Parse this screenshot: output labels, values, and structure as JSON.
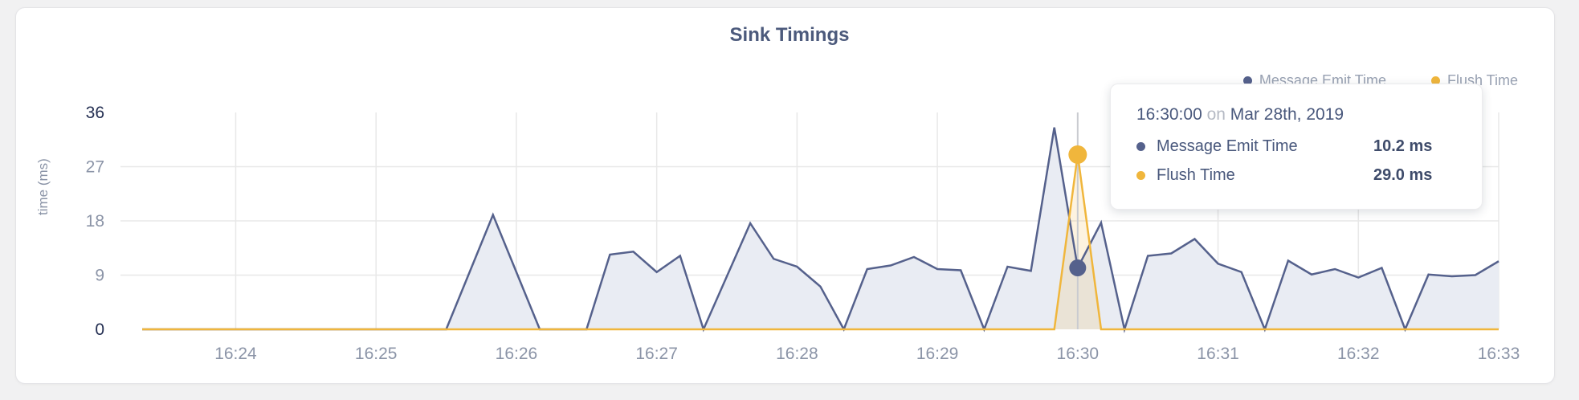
{
  "page": {
    "title": "Sink Timings"
  },
  "legend": {
    "items": [
      {
        "label": "Message Emit Time",
        "color": "#55618c"
      },
      {
        "label": "Flush Time",
        "color": "#f0b63c"
      }
    ]
  },
  "tooltip": {
    "time": "16:30:00",
    "connector": "on",
    "date": "Mar 28th, 2019",
    "rows": [
      {
        "label": "Message Emit Time",
        "value": "10.2 ms",
        "color": "#55618c"
      },
      {
        "label": "Flush Time",
        "value": "29.0 ms",
        "color": "#f0b63c"
      }
    ]
  },
  "chart_data": {
    "type": "area",
    "title": "Sink Timings",
    "xlabel": "",
    "ylabel": "time (ms)",
    "ylim": [
      0,
      36
    ],
    "yticks": [
      0,
      9,
      18,
      27,
      36
    ],
    "xtick_labels": [
      "16:24",
      "16:25",
      "16:26",
      "16:27",
      "16:28",
      "16:29",
      "16:30",
      "16:31",
      "16:32",
      "16:33"
    ],
    "grid": true,
    "legend_position": "top-right",
    "grid_color": "#e8e8e8",
    "crosshair_color": "#c9cbd0",
    "x": [
      "16:23:20",
      "16:23:30",
      "16:23:40",
      "16:23:50",
      "16:24:00",
      "16:24:10",
      "16:24:20",
      "16:24:30",
      "16:24:40",
      "16:24:50",
      "16:25:00",
      "16:25:10",
      "16:25:20",
      "16:25:30",
      "16:25:40",
      "16:25:50",
      "16:26:00",
      "16:26:10",
      "16:26:20",
      "16:26:30",
      "16:26:40",
      "16:26:50",
      "16:27:00",
      "16:27:10",
      "16:27:20",
      "16:27:30",
      "16:27:40",
      "16:27:50",
      "16:28:00",
      "16:28:10",
      "16:28:20",
      "16:28:30",
      "16:28:40",
      "16:28:50",
      "16:29:00",
      "16:29:10",
      "16:29:20",
      "16:29:30",
      "16:29:40",
      "16:29:50",
      "16:30:00",
      "16:30:10",
      "16:30:20",
      "16:30:30",
      "16:30:40",
      "16:30:50",
      "16:31:00",
      "16:31:10",
      "16:31:20",
      "16:31:30",
      "16:31:40",
      "16:31:50",
      "16:32:00",
      "16:32:10",
      "16:32:20",
      "16:32:30",
      "16:32:40",
      "16:32:50",
      "16:33:00"
    ],
    "series": [
      {
        "name": "Message Emit Time",
        "color": "#55618c",
        "fill": "#e9ecf3",
        "values": [
          0,
          0,
          0,
          0,
          0,
          0,
          0,
          0,
          0,
          0,
          0,
          0,
          0,
          0,
          9.5,
          19,
          9.5,
          0,
          0,
          0,
          12.4,
          12.9,
          9.5,
          12.2,
          0,
          8.8,
          17.6,
          11.7,
          10.4,
          7.1,
          0,
          10,
          10.6,
          12,
          10,
          9.8,
          0,
          10.4,
          9.7,
          33.5,
          10.2,
          17.7,
          0,
          12.2,
          12.6,
          15,
          10.9,
          9.5,
          0,
          11.4,
          9.1,
          10,
          8.6,
          10.2,
          0,
          9.1,
          8.8,
          9,
          11.3
        ]
      },
      {
        "name": "Flush Time",
        "color": "#f0b63c",
        "fill": "rgba(240,182,60,0.16)",
        "values": [
          0,
          0,
          0,
          0,
          0,
          0,
          0,
          0,
          0,
          0,
          0,
          0,
          0,
          0,
          0,
          0,
          0,
          0,
          0,
          0,
          0,
          0,
          0,
          0,
          0,
          0,
          0,
          0,
          0,
          0,
          0,
          0,
          0,
          0,
          0,
          0,
          0,
          0,
          0,
          0,
          29,
          0,
          0,
          0,
          0,
          0,
          0,
          0,
          0,
          0,
          0,
          0,
          0,
          0,
          0,
          0,
          0,
          0,
          0
        ]
      }
    ],
    "hover": {
      "index": 40,
      "time": "16:30:00",
      "date": "Mar 28th, 2019",
      "message_emit_ms": 10.2,
      "flush_ms": 29.0
    }
  }
}
